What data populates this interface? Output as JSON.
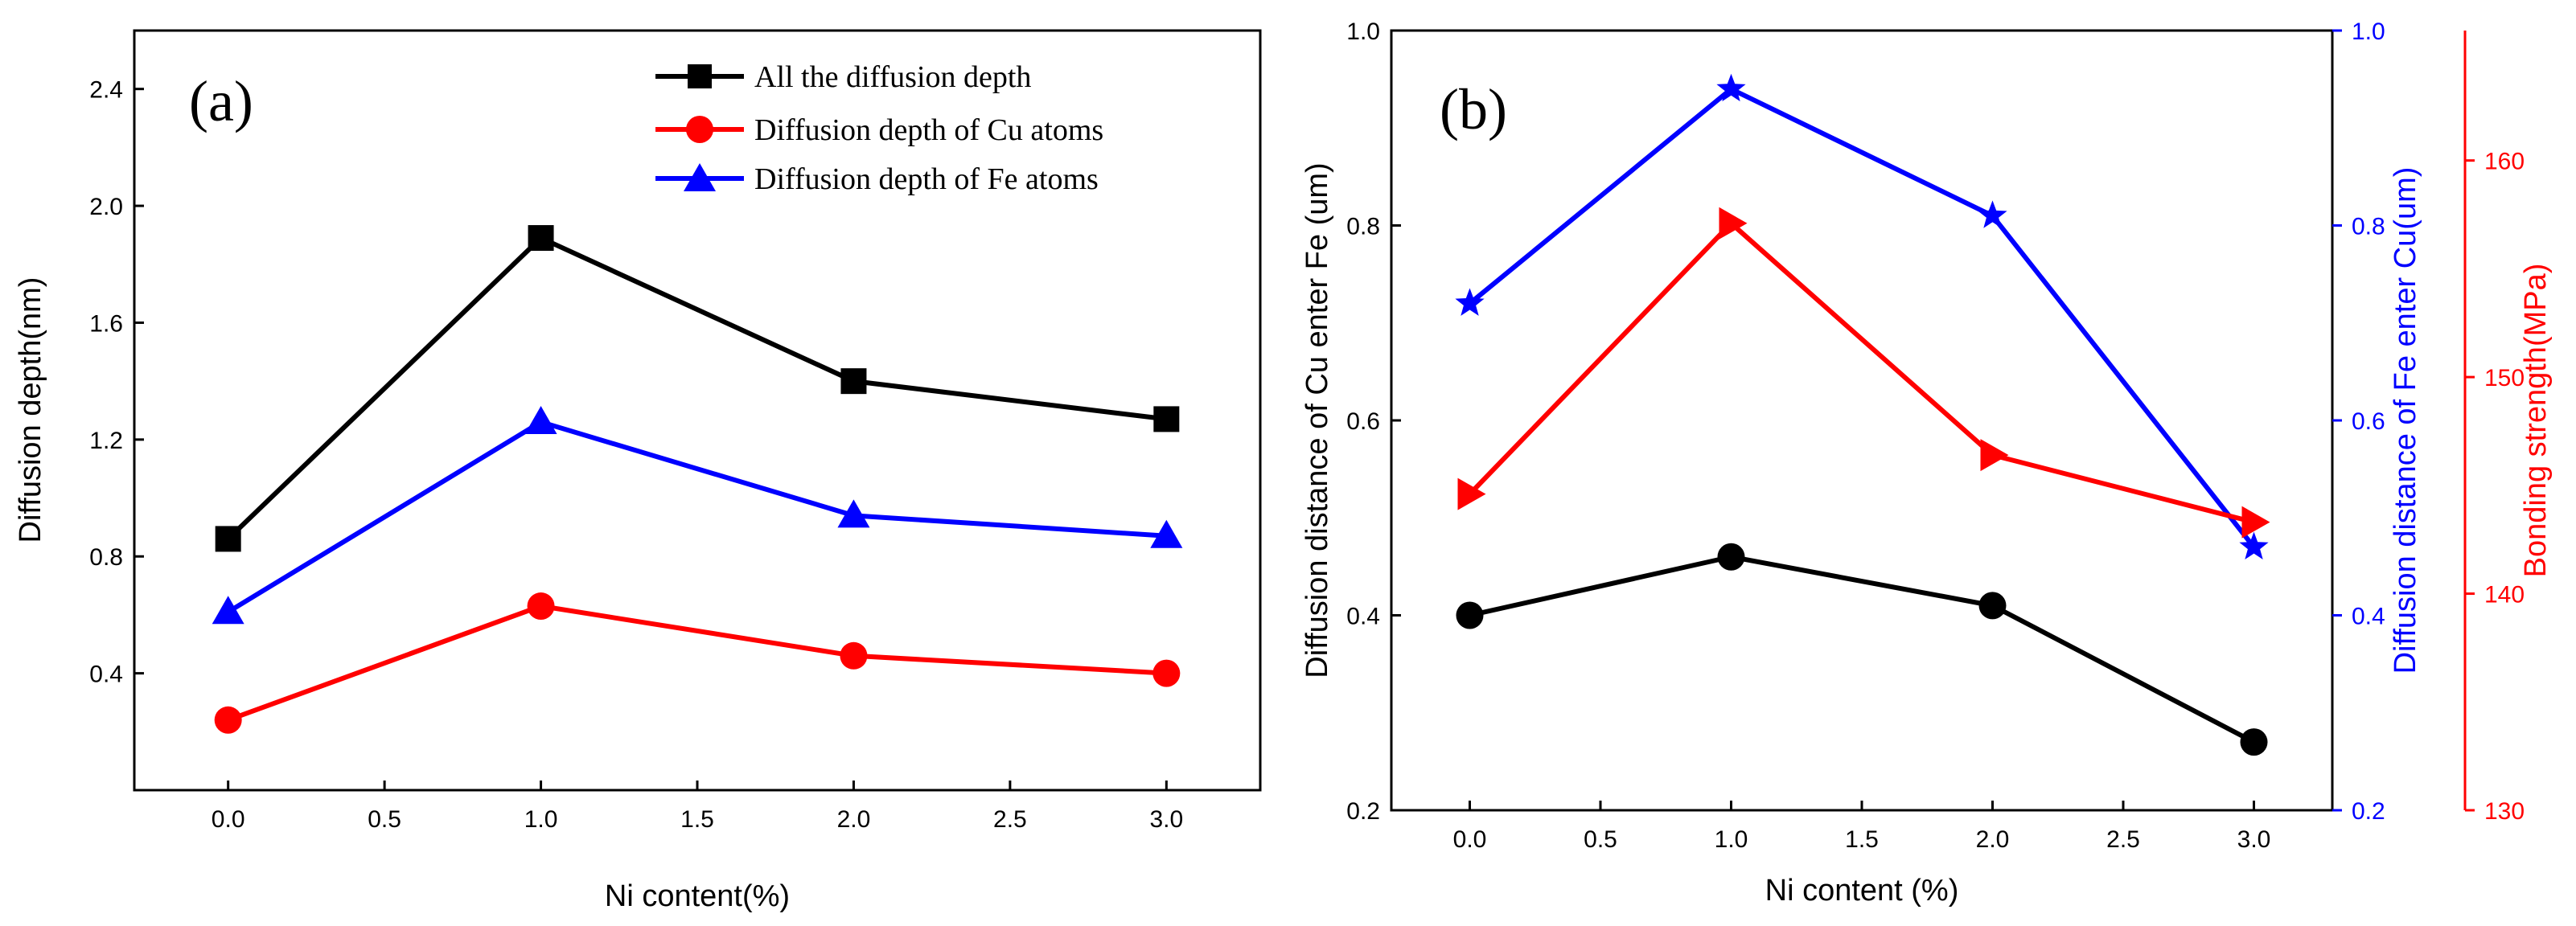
{
  "chart_data": [
    {
      "panel_label": "(a)",
      "type": "line",
      "xlabel": "Ni content(%)",
      "ylabel": "Diffusion depth(nm)",
      "xlim": [
        -0.3,
        3.3
      ],
      "ylim": [
        0.0,
        2.6
      ],
      "xticks": [
        "0.0",
        "0.5",
        "1.0",
        "1.5",
        "2.0",
        "2.5",
        "3.0"
      ],
      "yticks": [
        "0.4",
        "0.8",
        "1.2",
        "1.6",
        "2.0",
        "2.4"
      ],
      "x": [
        0,
        1,
        2,
        3
      ],
      "legend_position": "top-right",
      "series": [
        {
          "name": "All the diffusion depth",
          "color": "#000000",
          "marker": "square",
          "values": [
            0.86,
            1.89,
            1.4,
            1.27
          ]
        },
        {
          "name": "Diffusion depth of Cu atoms",
          "color": "#ff0000",
          "marker": "circle",
          "values": [
            0.24,
            0.63,
            0.46,
            0.4
          ]
        },
        {
          "name": "Diffusion depth of Fe atoms",
          "color": "#0000ff",
          "marker": "triangle-up",
          "values": [
            0.61,
            1.26,
            0.94,
            0.87
          ]
        }
      ]
    },
    {
      "panel_label": "(b)",
      "type": "line",
      "xlabel": "Ni content (%)",
      "xlim": [
        -0.3,
        3.3
      ],
      "xticks": [
        "0.0",
        "0.5",
        "1.0",
        "1.5",
        "2.0",
        "2.5",
        "3.0"
      ],
      "x": [
        0,
        1,
        2,
        3
      ],
      "axes": {
        "left": {
          "label": "Diffusion distance of Cu enter Fe (um)",
          "color": "#000000",
          "ylim": [
            0.2,
            1.0
          ],
          "ticks": [
            "0.2",
            "0.4",
            "0.6",
            "0.8",
            "1.0"
          ]
        },
        "right_inner": {
          "label": "Diffusion distance of Fe enter Cu(um)",
          "color": "#0000ff",
          "ylim": [
            0.2,
            1.0
          ],
          "ticks": [
            "0.2",
            "0.4",
            "0.6",
            "0.8",
            "1.0"
          ]
        },
        "right_outer": {
          "label": "Bonding strength(MPa)",
          "color": "#ff0000",
          "ylim": [
            130,
            166
          ],
          "ticks": [
            "130",
            "140",
            "150",
            "160"
          ]
        }
      },
      "series": [
        {
          "name": "Diffusion distance of Cu enter Fe",
          "axis": "left",
          "color": "#000000",
          "marker": "circle",
          "values": [
            0.4,
            0.46,
            0.41,
            0.27
          ]
        },
        {
          "name": "Diffusion distance of Fe enter Cu",
          "axis": "right_inner",
          "color": "#0000ff",
          "marker": "star",
          "values": [
            0.72,
            0.94,
            0.81,
            0.47
          ]
        },
        {
          "name": "Bonding strength",
          "axis": "right_outer",
          "color": "#ff0000",
          "marker": "triangle-right",
          "values": [
            144.6,
            157.1,
            146.4,
            143.3
          ]
        }
      ]
    }
  ]
}
